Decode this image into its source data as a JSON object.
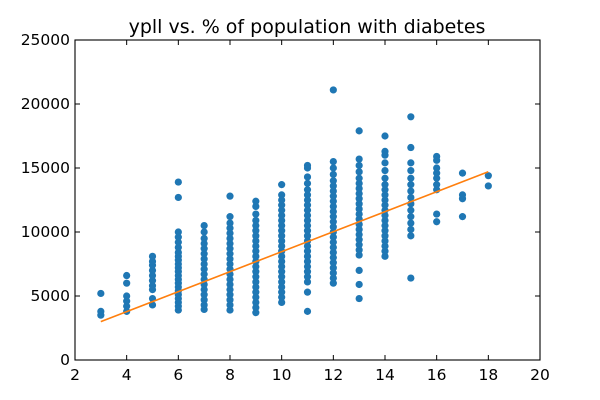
{
  "chart_data": {
    "type": "scatter",
    "title": "ypll vs. % of population with diabetes",
    "xlabel": "",
    "ylabel": "",
    "xlim": [
      2,
      20
    ],
    "ylim": [
      0,
      25000
    ],
    "x_ticks": [
      2,
      4,
      6,
      8,
      10,
      12,
      14,
      16,
      18,
      20
    ],
    "y_ticks": [
      0,
      5000,
      10000,
      15000,
      20000,
      25000
    ],
    "grid": false,
    "legend": "none",
    "colors": {
      "scatter": "#1f77b4",
      "fit_line": "#ff7f0e"
    },
    "series": [
      {
        "kind": "scatter",
        "points": [
          [
            3,
            3500
          ],
          [
            3,
            3800
          ],
          [
            3,
            5200
          ],
          [
            4,
            3800
          ],
          [
            4,
            4200
          ],
          [
            4,
            4600
          ],
          [
            4,
            5000
          ],
          [
            4,
            6000
          ],
          [
            4,
            6600
          ],
          [
            5,
            4300
          ],
          [
            5,
            4800
          ],
          [
            5,
            5500
          ],
          [
            5,
            5800
          ],
          [
            5,
            6200
          ],
          [
            5,
            6600
          ],
          [
            5,
            7000
          ],
          [
            5,
            7400
          ],
          [
            5,
            7700
          ],
          [
            5,
            8100
          ],
          [
            6,
            3900
          ],
          [
            6,
            4200
          ],
          [
            6,
            4500
          ],
          [
            6,
            4800
          ],
          [
            6,
            5100
          ],
          [
            6,
            5400
          ],
          [
            6,
            5700
          ],
          [
            6,
            6000
          ],
          [
            6,
            6300
          ],
          [
            6,
            6600
          ],
          [
            6,
            6900
          ],
          [
            6,
            7200
          ],
          [
            6,
            7500
          ],
          [
            6,
            7800
          ],
          [
            6,
            8100
          ],
          [
            6,
            8400
          ],
          [
            6,
            8800
          ],
          [
            6,
            9200
          ],
          [
            6,
            9600
          ],
          [
            6,
            10000
          ],
          [
            6,
            12700
          ],
          [
            6,
            13900
          ],
          [
            7,
            3950
          ],
          [
            7,
            4300
          ],
          [
            7,
            4700
          ],
          [
            7,
            5100
          ],
          [
            7,
            5500
          ],
          [
            7,
            5900
          ],
          [
            7,
            6300
          ],
          [
            7,
            6700
          ],
          [
            7,
            7100
          ],
          [
            7,
            7500
          ],
          [
            7,
            7900
          ],
          [
            7,
            8300
          ],
          [
            7,
            8700
          ],
          [
            7,
            9100
          ],
          [
            7,
            9500
          ],
          [
            7,
            10000
          ],
          [
            7,
            10500
          ],
          [
            8,
            3900
          ],
          [
            8,
            4300
          ],
          [
            8,
            4700
          ],
          [
            8,
            5100
          ],
          [
            8,
            5500
          ],
          [
            8,
            5900
          ],
          [
            8,
            6300
          ],
          [
            8,
            6700
          ],
          [
            8,
            7100
          ],
          [
            8,
            7500
          ],
          [
            8,
            7900
          ],
          [
            8,
            8300
          ],
          [
            8,
            8700
          ],
          [
            8,
            9100
          ],
          [
            8,
            9500
          ],
          [
            8,
            9900
          ],
          [
            8,
            10300
          ],
          [
            8,
            10700
          ],
          [
            8,
            11200
          ],
          [
            8,
            12800
          ],
          [
            9,
            3700
          ],
          [
            9,
            4100
          ],
          [
            9,
            4500
          ],
          [
            9,
            4900
          ],
          [
            9,
            5300
          ],
          [
            9,
            5700
          ],
          [
            9,
            6100
          ],
          [
            9,
            6500
          ],
          [
            9,
            6900
          ],
          [
            9,
            7300
          ],
          [
            9,
            7700
          ],
          [
            9,
            8100
          ],
          [
            9,
            8500
          ],
          [
            9,
            8900
          ],
          [
            9,
            9300
          ],
          [
            9,
            9700
          ],
          [
            9,
            10100
          ],
          [
            9,
            10500
          ],
          [
            9,
            10900
          ],
          [
            9,
            11400
          ],
          [
            9,
            12000
          ],
          [
            9,
            12400
          ],
          [
            10,
            4500
          ],
          [
            10,
            4900
          ],
          [
            10,
            5300
          ],
          [
            10,
            5700
          ],
          [
            10,
            6100
          ],
          [
            10,
            6500
          ],
          [
            10,
            6900
          ],
          [
            10,
            7300
          ],
          [
            10,
            7700
          ],
          [
            10,
            8100
          ],
          [
            10,
            8500
          ],
          [
            10,
            8900
          ],
          [
            10,
            9300
          ],
          [
            10,
            9700
          ],
          [
            10,
            10100
          ],
          [
            10,
            10500
          ],
          [
            10,
            10900
          ],
          [
            10,
            11300
          ],
          [
            10,
            11700
          ],
          [
            10,
            12100
          ],
          [
            10,
            12500
          ],
          [
            10,
            12900
          ],
          [
            10,
            13700
          ],
          [
            11,
            3800
          ],
          [
            11,
            5300
          ],
          [
            11,
            6100
          ],
          [
            11,
            6500
          ],
          [
            11,
            6900
          ],
          [
            11,
            7300
          ],
          [
            11,
            7700
          ],
          [
            11,
            8100
          ],
          [
            11,
            8500
          ],
          [
            11,
            8900
          ],
          [
            11,
            9300
          ],
          [
            11,
            9700
          ],
          [
            11,
            10100
          ],
          [
            11,
            10500
          ],
          [
            11,
            10900
          ],
          [
            11,
            11300
          ],
          [
            11,
            11700
          ],
          [
            11,
            12100
          ],
          [
            11,
            12500
          ],
          [
            11,
            12900
          ],
          [
            11,
            13300
          ],
          [
            11,
            13800
          ],
          [
            11,
            14300
          ],
          [
            11,
            15000
          ],
          [
            11,
            15200
          ],
          [
            12,
            6000
          ],
          [
            12,
            6400
          ],
          [
            12,
            6800
          ],
          [
            12,
            7200
          ],
          [
            12,
            7600
          ],
          [
            12,
            8000
          ],
          [
            12,
            8400
          ],
          [
            12,
            8800
          ],
          [
            12,
            9200
          ],
          [
            12,
            9600
          ],
          [
            12,
            10000
          ],
          [
            12,
            10400
          ],
          [
            12,
            10800
          ],
          [
            12,
            11200
          ],
          [
            12,
            11600
          ],
          [
            12,
            12000
          ],
          [
            12,
            12400
          ],
          [
            12,
            12800
          ],
          [
            12,
            13200
          ],
          [
            12,
            13600
          ],
          [
            12,
            14000
          ],
          [
            12,
            14500
          ],
          [
            12,
            15000
          ],
          [
            12,
            15500
          ],
          [
            12,
            21100
          ],
          [
            13,
            4800
          ],
          [
            13,
            5900
          ],
          [
            13,
            7000
          ],
          [
            13,
            8200
          ],
          [
            13,
            8600
          ],
          [
            13,
            9000
          ],
          [
            13,
            9400
          ],
          [
            13,
            9800
          ],
          [
            13,
            10200
          ],
          [
            13,
            10600
          ],
          [
            13,
            11000
          ],
          [
            13,
            11400
          ],
          [
            13,
            11800
          ],
          [
            13,
            12200
          ],
          [
            13,
            12600
          ],
          [
            13,
            13000
          ],
          [
            13,
            13400
          ],
          [
            13,
            13800
          ],
          [
            13,
            14200
          ],
          [
            13,
            14700
          ],
          [
            13,
            15200
          ],
          [
            13,
            15700
          ],
          [
            13,
            17900
          ],
          [
            14,
            8100
          ],
          [
            14,
            8500
          ],
          [
            14,
            8900
          ],
          [
            14,
            9300
          ],
          [
            14,
            9700
          ],
          [
            14,
            10100
          ],
          [
            14,
            10500
          ],
          [
            14,
            10900
          ],
          [
            14,
            11300
          ],
          [
            14,
            11700
          ],
          [
            14,
            12100
          ],
          [
            14,
            12500
          ],
          [
            14,
            12900
          ],
          [
            14,
            13300
          ],
          [
            14,
            13700
          ],
          [
            14,
            14200
          ],
          [
            14,
            14800
          ],
          [
            14,
            15400
          ],
          [
            14,
            16000
          ],
          [
            14,
            16300
          ],
          [
            14,
            17500
          ],
          [
            15,
            6400
          ],
          [
            15,
            9700
          ],
          [
            15,
            10200
          ],
          [
            15,
            10700
          ],
          [
            15,
            11200
          ],
          [
            15,
            11700
          ],
          [
            15,
            12200
          ],
          [
            15,
            12700
          ],
          [
            15,
            13200
          ],
          [
            15,
            13700
          ],
          [
            15,
            14200
          ],
          [
            15,
            14800
          ],
          [
            15,
            15400
          ],
          [
            15,
            16600
          ],
          [
            15,
            19000
          ],
          [
            16,
            10800
          ],
          [
            16,
            11400
          ],
          [
            16,
            13300
          ],
          [
            16,
            13700
          ],
          [
            16,
            14200
          ],
          [
            16,
            14600
          ],
          [
            16,
            15000
          ],
          [
            16,
            15600
          ],
          [
            16,
            15900
          ],
          [
            17,
            11200
          ],
          [
            17,
            12600
          ],
          [
            17,
            12900
          ],
          [
            17,
            14600
          ],
          [
            18,
            13600
          ],
          [
            18,
            14400
          ]
        ]
      },
      {
        "kind": "line",
        "points": [
          [
            3,
            3000
          ],
          [
            18,
            14700
          ]
        ]
      }
    ]
  }
}
